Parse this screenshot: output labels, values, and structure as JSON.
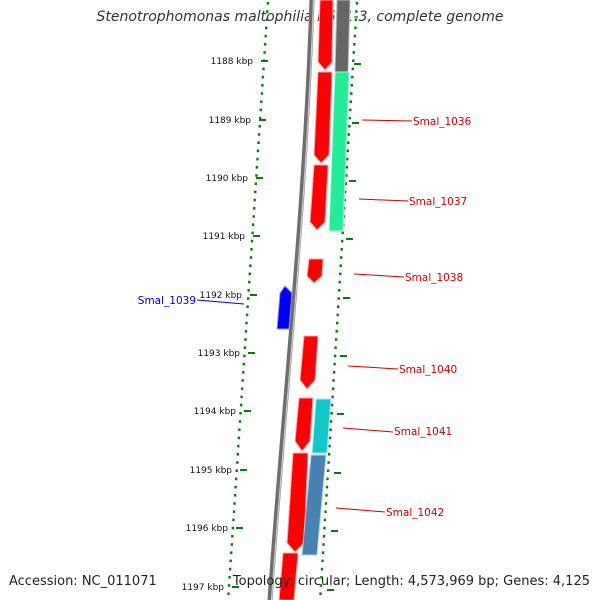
{
  "title": "Stenotrophomonas maltophilia R551-3, complete genome",
  "footer": {
    "accession": "Accession: NC_011071",
    "summary": "Topology: circular; Length: 4,573,969 bp; Genes: 4,125"
  },
  "colors": {
    "backbone": "#7a7a7a",
    "tick_dots": "#0a7a0a",
    "gene_forward": "#ff0000",
    "gene_reverse_highlight": "#0000ff",
    "cds_green": "#22ee99",
    "cds_teal": "#11c8c8",
    "cds_steel": "#4682b4",
    "cds_gray": "#666666",
    "label_red": "#cc0000",
    "label_blue": "#0000cc"
  },
  "ruler": {
    "unit": "kbp",
    "ticks": [
      "1188 kbp",
      "1189 kbp",
      "1190 kbp",
      "1191 kbp",
      "1192 kbp",
      "1193 kbp",
      "1194 kbp",
      "1195 kbp",
      "1196 kbp",
      "1197 kbp"
    ]
  },
  "gene_labels": [
    {
      "id": "smal-1036",
      "text": "Smal_1036",
      "strand": "reverse"
    },
    {
      "id": "smal-1037",
      "text": "Smal_1037",
      "strand": "reverse"
    },
    {
      "id": "smal-1038",
      "text": "Smal_1038",
      "strand": "reverse"
    },
    {
      "id": "smal-1039",
      "text": "Smal_1039",
      "strand": "forward"
    },
    {
      "id": "smal-1040",
      "text": "Smal_1040",
      "strand": "reverse"
    },
    {
      "id": "smal-1041",
      "text": "Smal_1041",
      "strand": "reverse"
    },
    {
      "id": "smal-1042",
      "text": "Smal_1042",
      "strand": "reverse"
    }
  ]
}
